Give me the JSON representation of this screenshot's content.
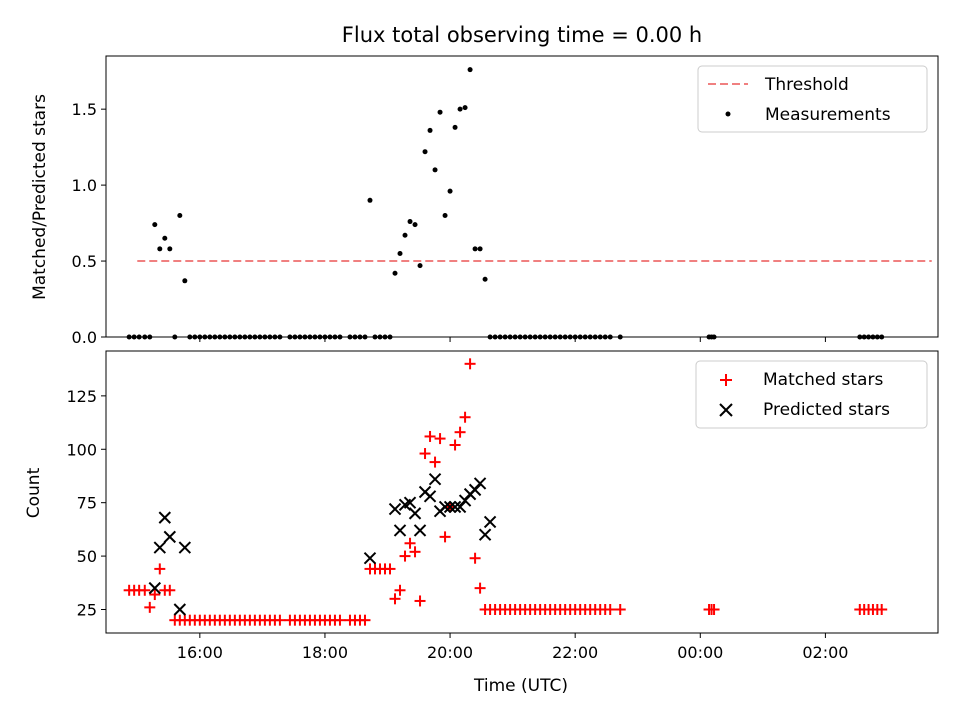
{
  "chart_data": [
    {
      "type": "scatter",
      "title": "Flux total observing time = 0.00 h",
      "xlabel": "",
      "ylabel": "Matched/Predicted stars",
      "xlim": [
        14.5,
        27.8
      ],
      "ylim": [
        0,
        1.85
      ],
      "yticks": [
        0,
        0.5,
        1.0,
        1.5
      ],
      "ytick_labels": [
        "0.0",
        "0.5",
        "1.0",
        "1.5"
      ],
      "legend_location": "top-right",
      "series": [
        {
          "name": "Threshold",
          "style": "dashed-line",
          "color": "#f08080",
          "x": [
            15.0,
            27.7
          ],
          "y": [
            0.5,
            0.5
          ]
        },
        {
          "name": "Measurements",
          "style": "dot",
          "color": "#000000",
          "x": [
            14.87,
            14.95,
            15.03,
            15.12,
            15.2,
            15.28,
            15.36,
            15.44,
            15.52,
            15.6,
            15.68,
            15.76,
            15.84,
            15.92,
            16.0,
            16.08,
            16.16,
            16.24,
            16.32,
            16.4,
            16.48,
            16.56,
            16.64,
            16.72,
            16.8,
            16.88,
            16.96,
            17.04,
            17.12,
            17.2,
            17.28,
            17.44,
            17.52,
            17.6,
            17.68,
            17.76,
            17.84,
            17.92,
            18.0,
            18.08,
            18.16,
            18.24,
            18.4,
            18.48,
            18.56,
            18.64,
            18.72,
            18.8,
            18.88,
            18.96,
            19.04,
            19.12,
            19.2,
            19.28,
            19.36,
            19.44,
            19.52,
            19.6,
            19.68,
            19.76,
            19.84,
            19.92,
            20.0,
            20.08,
            20.16,
            20.24,
            20.32,
            20.4,
            20.48,
            20.56,
            20.64,
            20.72,
            20.8,
            20.88,
            20.96,
            21.04,
            21.12,
            21.2,
            21.28,
            21.36,
            21.44,
            21.52,
            21.6,
            21.68,
            21.76,
            21.84,
            21.92,
            22.0,
            22.08,
            22.16,
            22.24,
            22.32,
            22.4,
            22.48,
            22.56,
            22.72,
            24.14,
            24.18,
            24.22,
            26.55,
            26.62,
            26.69,
            26.76,
            26.83,
            26.9
          ],
          "y": [
            0,
            0,
            0,
            0,
            0,
            0.74,
            0.58,
            0.65,
            0.58,
            0,
            0.8,
            0.37,
            0,
            0,
            0,
            0,
            0,
            0,
            0,
            0,
            0,
            0,
            0,
            0,
            0,
            0,
            0,
            0,
            0,
            0,
            0,
            0,
            0,
            0,
            0,
            0,
            0,
            0,
            0,
            0,
            0,
            0,
            0,
            0,
            0,
            0,
            0.9,
            0,
            0,
            0,
            0,
            0.42,
            0.55,
            0.67,
            0.76,
            0.74,
            0.47,
            1.22,
            1.36,
            1.1,
            1.48,
            0.8,
            0.96,
            1.38,
            1.5,
            1.51,
            1.76,
            0.58,
            0.58,
            0.38,
            0,
            0,
            0,
            0,
            0,
            0,
            0,
            0,
            0,
            0,
            0,
            0,
            0,
            0,
            0,
            0,
            0,
            0,
            0,
            0,
            0,
            0,
            0,
            0,
            0,
            0,
            0,
            0,
            0,
            0,
            0,
            0,
            0,
            0,
            0
          ]
        }
      ]
    },
    {
      "type": "scatter",
      "title": "",
      "xlabel": "Time (UTC)",
      "ylabel": "Count",
      "xlim": [
        14.5,
        27.8
      ],
      "ylim": [
        14,
        146
      ],
      "yticks": [
        25,
        50,
        75,
        100,
        125
      ],
      "ytick_labels": [
        "25",
        "50",
        "75",
        "100",
        "125"
      ],
      "xticks": [
        16,
        18,
        20,
        22,
        24,
        26
      ],
      "xtick_labels": [
        "16:00",
        "18:00",
        "20:00",
        "22:00",
        "00:00",
        "02:00"
      ],
      "legend_location": "top-right",
      "series": [
        {
          "name": "Matched stars",
          "style": "plus",
          "color": "#ff0000",
          "x": [
            14.87,
            14.95,
            15.03,
            15.12,
            15.2,
            15.28,
            15.36,
            15.44,
            15.52,
            15.6,
            15.68,
            15.76,
            15.84,
            15.92,
            16.0,
            16.08,
            16.16,
            16.24,
            16.32,
            16.4,
            16.48,
            16.56,
            16.64,
            16.72,
            16.8,
            16.88,
            16.96,
            17.04,
            17.12,
            17.2,
            17.28,
            17.44,
            17.52,
            17.6,
            17.68,
            17.76,
            17.84,
            17.92,
            18.0,
            18.08,
            18.16,
            18.24,
            18.4,
            18.48,
            18.56,
            18.64,
            18.72,
            18.8,
            18.88,
            18.96,
            19.04,
            19.12,
            19.2,
            19.28,
            19.36,
            19.44,
            19.52,
            19.6,
            19.68,
            19.76,
            19.84,
            19.92,
            20.0,
            20.08,
            20.16,
            20.24,
            20.32,
            20.4,
            20.48,
            20.56,
            20.64,
            20.72,
            20.8,
            20.88,
            20.96,
            21.04,
            21.12,
            21.2,
            21.28,
            21.36,
            21.44,
            21.52,
            21.6,
            21.68,
            21.76,
            21.84,
            21.92,
            22.0,
            22.08,
            22.16,
            22.24,
            22.32,
            22.4,
            22.48,
            22.56,
            22.72,
            24.14,
            24.18,
            24.22,
            26.55,
            26.62,
            26.69,
            26.76,
            26.83,
            26.9
          ],
          "y": [
            34,
            34,
            34,
            34,
            26,
            32,
            44,
            34,
            34,
            20,
            20,
            20,
            20,
            20,
            20,
            20,
            20,
            20,
            20,
            20,
            20,
            20,
            20,
            20,
            20,
            20,
            20,
            20,
            20,
            20,
            20,
            20,
            20,
            20,
            20,
            20,
            20,
            20,
            20,
            20,
            20,
            20,
            20,
            20,
            20,
            20,
            44,
            44,
            44,
            44,
            44,
            30,
            34,
            50,
            56,
            52,
            29,
            98,
            106,
            94,
            105,
            59,
            73,
            102,
            108,
            115,
            140,
            49,
            35,
            25,
            25,
            25,
            25,
            25,
            25,
            25,
            25,
            25,
            25,
            25,
            25,
            25,
            25,
            25,
            25,
            25,
            25,
            25,
            25,
            25,
            25,
            25,
            25,
            25,
            25,
            25,
            25,
            25,
            25,
            25,
            25,
            25,
            25,
            25,
            25
          ]
        },
        {
          "name": "Predicted stars",
          "style": "x",
          "color": "#000000",
          "x": [
            15.28,
            15.36,
            15.44,
            15.52,
            15.68,
            15.76,
            18.72,
            19.12,
            19.2,
            19.28,
            19.36,
            19.44,
            19.52,
            19.6,
            19.68,
            19.76,
            19.84,
            19.92,
            20.0,
            20.08,
            20.16,
            20.24,
            20.32,
            20.4,
            20.48,
            20.56,
            20.64
          ],
          "y": [
            35,
            54,
            68,
            59,
            25,
            54,
            49,
            72,
            62,
            74,
            75,
            70,
            62,
            80,
            78,
            86,
            71,
            73,
            73,
            73,
            73,
            76,
            79,
            81,
            84,
            60,
            66
          ]
        }
      ]
    }
  ]
}
